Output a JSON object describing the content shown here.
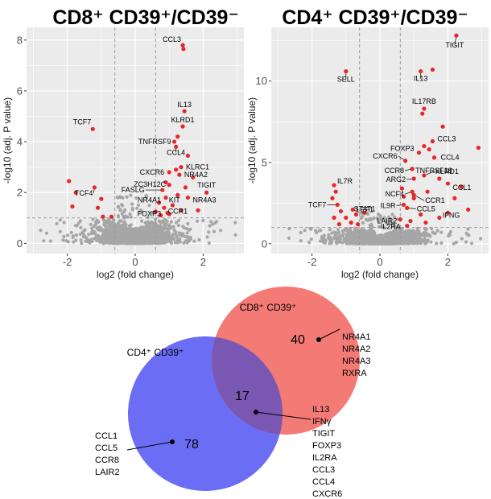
{
  "chart_data": [
    {
      "type": "scatter",
      "title": "CD8⁺ CD39⁺/CD39⁻",
      "xlabel": "log2 (fold change)",
      "ylabel": "-log10 (adj. P value)",
      "xlim": [
        -3.2,
        3.2
      ],
      "ylim": [
        -0.4,
        8.5
      ],
      "xticks": [
        -2,
        0,
        2
      ],
      "yticks": [
        0,
        2,
        4,
        6,
        8
      ],
      "fc_threshold": [
        -0.6,
        0.6
      ],
      "p_threshold": 1.0,
      "grid": true,
      "colors": {
        "significant": "#e8262a",
        "background": "#a6a6a6",
        "panel": "#ebebeb"
      },
      "labeled_points": [
        {
          "gene": "CCL3",
          "x": 1.4,
          "y": 7.8
        },
        {
          "gene": "IL13",
          "x": 1.45,
          "y": 5.2
        },
        {
          "gene": "KLRD1",
          "x": 1.4,
          "y": 4.6
        },
        {
          "gene": "TCF7",
          "x": -1.25,
          "y": 4.5
        },
        {
          "gene": "TNFRSF9",
          "x": 1.15,
          "y": 4.0
        },
        {
          "gene": "CCL4",
          "x": 1.2,
          "y": 3.8
        },
        {
          "gene": "KLRC1",
          "x": 1.35,
          "y": 3.0
        },
        {
          "gene": "CXCR6",
          "x": 1.0,
          "y": 2.8
        },
        {
          "gene": "NR4A2",
          "x": 1.3,
          "y": 2.7
        },
        {
          "gene": "ZC3H12C",
          "x": 1.0,
          "y": 2.3
        },
        {
          "gene": "TIGIT",
          "x": 2.1,
          "y": 2.0
        },
        {
          "gene": "FASLG",
          "x": 0.8,
          "y": 2.1
        },
        {
          "gene": "TCF4",
          "x": -1.2,
          "y": 2.2
        },
        {
          "gene": "KIT",
          "x": 1.25,
          "y": 1.9
        },
        {
          "gene": "NR4A3",
          "x": 1.55,
          "y": 1.8
        },
        {
          "gene": "NR4A1",
          "x": 0.9,
          "y": 1.8
        },
        {
          "gene": "CCR1",
          "x": 1.35,
          "y": 1.3
        },
        {
          "gene": "FOXP3",
          "x": 0.95,
          "y": 1.2
        }
      ],
      "other_significant_points": [
        {
          "x": -1.95,
          "y": 2.45
        },
        {
          "x": -1.75,
          "y": 2.0
        },
        {
          "x": -1.85,
          "y": 1.45
        },
        {
          "x": -1.0,
          "y": 1.75
        },
        {
          "x": -1.1,
          "y": 1.4
        },
        {
          "x": -0.95,
          "y": 1.05
        },
        {
          "x": -0.7,
          "y": 1.05
        },
        {
          "x": 1.42,
          "y": 7.65
        },
        {
          "x": 1.25,
          "y": 4.2
        },
        {
          "x": 1.55,
          "y": 3.45
        },
        {
          "x": 0.7,
          "y": 1.6
        },
        {
          "x": 0.85,
          "y": 1.4
        },
        {
          "x": 1.1,
          "y": 1.5
        },
        {
          "x": 1.0,
          "y": 1.15
        },
        {
          "x": 0.75,
          "y": 1.1
        },
        {
          "x": 1.7,
          "y": 2.6
        },
        {
          "x": 1.85,
          "y": 1.3
        },
        {
          "x": 1.2,
          "y": 2.9
        },
        {
          "x": 1.48,
          "y": 2.2
        },
        {
          "x": 0.9,
          "y": 2.4
        },
        {
          "x": 0.6,
          "y": 1.25
        }
      ]
    },
    {
      "type": "scatter",
      "title": "CD4⁺ CD39⁺/CD39⁻",
      "xlabel": "log2 (fold change)",
      "ylabel": "-log10 (adj. P value)",
      "xlim": [
        -3.2,
        3.2
      ],
      "ylim": [
        -0.6,
        13.3
      ],
      "xticks": [
        -2,
        0,
        2
      ],
      "yticks": [
        0,
        5,
        10
      ],
      "fc_threshold": [
        -0.6,
        0.6
      ],
      "p_threshold": 1.0,
      "grid": true,
      "colors": {
        "significant": "#e8262a",
        "background": "#a6a6a6",
        "panel": "#ebebeb"
      },
      "labeled_points": [
        {
          "gene": "TIGIT",
          "x": 2.25,
          "y": 12.8
        },
        {
          "gene": "SELL",
          "x": -1.0,
          "y": 10.6
        },
        {
          "gene": "IL13",
          "x": 1.2,
          "y": 10.6
        },
        {
          "gene": "IL17RB",
          "x": 1.3,
          "y": 8.3
        },
        {
          "gene": "CCL3",
          "x": 1.55,
          "y": 6.3
        },
        {
          "gene": "FOXP3",
          "x": 1.15,
          "y": 5.6
        },
        {
          "gene": "CCL4",
          "x": 1.6,
          "y": 5.3
        },
        {
          "gene": "CXCR6",
          "x": 0.75,
          "y": 5.1
        },
        {
          "gene": "CCR8",
          "x": 0.95,
          "y": 4.6
        },
        {
          "gene": "TNFRSF18",
          "x": 0.95,
          "y": 4.6
        },
        {
          "gene": "KLRD1",
          "x": 1.3,
          "y": 4.2
        },
        {
          "gene": "ARG2",
          "x": 1.0,
          "y": 4.0
        },
        {
          "gene": "IL7R",
          "x": -1.35,
          "y": 3.6
        },
        {
          "gene": "CCL1",
          "x": 2.0,
          "y": 3.7
        },
        {
          "gene": "NCF4",
          "x": 0.95,
          "y": 3.2
        },
        {
          "gene": "CCR1",
          "x": 1.0,
          "y": 3.0
        },
        {
          "gene": "TCF7",
          "x": -1.25,
          "y": 2.4
        },
        {
          "gene": "LEF1",
          "x": -0.8,
          "y": 2.1
        },
        {
          "gene": "IL9R",
          "x": 0.7,
          "y": 2.4
        },
        {
          "gene": "CCL5",
          "x": 0.8,
          "y": 2.2
        },
        {
          "gene": "STAT1",
          "x": -0.45,
          "y": 1.9
        },
        {
          "gene": "LAIR2",
          "x": 0.6,
          "y": 1.5
        },
        {
          "gene": "IFNG",
          "x": 1.75,
          "y": 1.6
        },
        {
          "gene": "IL2RA",
          "x": 0.8,
          "y": 1.1
        }
      ],
      "other_significant_points": [
        {
          "x": 1.55,
          "y": 10.7
        },
        {
          "x": 1.25,
          "y": 8.0
        },
        {
          "x": 1.85,
          "y": 7.2
        },
        {
          "x": 2.9,
          "y": 5.9
        },
        {
          "x": 1.3,
          "y": 6.0
        },
        {
          "x": 1.45,
          "y": 5.8
        },
        {
          "x": 1.75,
          "y": 4.0
        },
        {
          "x": 2.4,
          "y": 3.5
        },
        {
          "x": 2.2,
          "y": 2.8
        },
        {
          "x": 1.4,
          "y": 3.2
        },
        {
          "x": 1.0,
          "y": 2.8
        },
        {
          "x": 2.0,
          "y": 1.9
        },
        {
          "x": 2.6,
          "y": 2.1
        },
        {
          "x": 1.2,
          "y": 1.8
        },
        {
          "x": 0.65,
          "y": 3.4
        },
        {
          "x": 0.7,
          "y": 2.9
        },
        {
          "x": 0.9,
          "y": 1.4
        },
        {
          "x": 1.35,
          "y": 1.3
        },
        {
          "x": -1.4,
          "y": 2.8
        },
        {
          "x": -1.3,
          "y": 3.2
        },
        {
          "x": -1.15,
          "y": 2.0
        },
        {
          "x": -1.0,
          "y": 1.6
        },
        {
          "x": -0.85,
          "y": 1.3
        },
        {
          "x": -1.2,
          "y": 1.2
        },
        {
          "x": -0.7,
          "y": 1.8
        },
        {
          "x": -0.65,
          "y": 1.2
        },
        {
          "x": -1.35,
          "y": 1.6
        }
      ]
    },
    {
      "type": "venn",
      "sets": [
        {
          "label": "CD8⁺ CD39⁺",
          "color": "#f47a76",
          "only_count": "40",
          "genes": [
            "NR4A1",
            "NR4A2",
            "NR4A3",
            "RXRA"
          ]
        },
        {
          "label": "CD4⁺ CD39⁺",
          "color": "#6b6ef5",
          "only_count": "78",
          "genes": [
            "CCL1",
            "CCL5",
            "CCR8",
            "LAIR2"
          ]
        }
      ],
      "intersection": {
        "count": "17",
        "color": "#7957b3",
        "genes": [
          "IL13",
          "IFNγ",
          "TIGIT",
          "FOXP3",
          "IL2RA",
          "CCL3",
          "CCL4",
          "CXCR6"
        ]
      }
    }
  ]
}
